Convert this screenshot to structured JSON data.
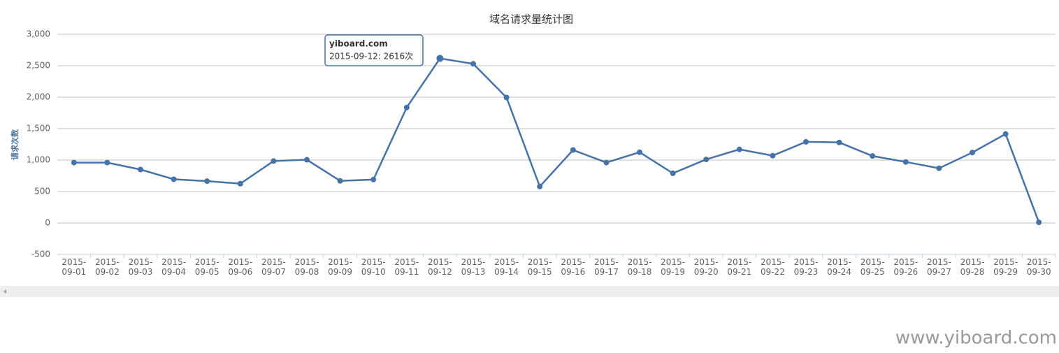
{
  "chart_data": {
    "type": "line",
    "title": "域名请求量统计图",
    "y_label": "请求次数",
    "categories": [
      "2015-09-01",
      "2015-09-02",
      "2015-09-03",
      "2015-09-04",
      "2015-09-05",
      "2015-09-06",
      "2015-09-07",
      "2015-09-08",
      "2015-09-09",
      "2015-09-10",
      "2015-09-11",
      "2015-09-12",
      "2015-09-13",
      "2015-09-14",
      "2015-09-15",
      "2015-09-16",
      "2015-09-17",
      "2015-09-18",
      "2015-09-19",
      "2015-09-20",
      "2015-09-21",
      "2015-09-22",
      "2015-09-23",
      "2015-09-24",
      "2015-09-25",
      "2015-09-26",
      "2015-09-27",
      "2015-09-28",
      "2015-09-29",
      "2015-09-30"
    ],
    "series": [
      {
        "name": "yiboard.com",
        "color": "#4572a7",
        "values": [
          960,
          960,
          850,
          695,
          665,
          625,
          985,
          1005,
          670,
          690,
          1835,
          2616,
          2530,
          1995,
          580,
          1160,
          960,
          1125,
          790,
          1010,
          1170,
          1070,
          1290,
          1280,
          1065,
          970,
          870,
          1120,
          1415,
          10
        ]
      }
    ],
    "ylim": [
      -500,
      3000
    ],
    "yticks": [
      {
        "value": 3000,
        "label": "3,000"
      },
      {
        "value": 2500,
        "label": "2,500"
      },
      {
        "value": 2000,
        "label": "2,000"
      },
      {
        "value": 1500,
        "label": "1,500"
      },
      {
        "value": 1000,
        "label": "1,000"
      },
      500,
      0,
      -500
    ],
    "grid": true,
    "tooltip": {
      "index": 11,
      "text": "2015-09-12: 2616次"
    },
    "watermark": "www.yiboard.com"
  }
}
